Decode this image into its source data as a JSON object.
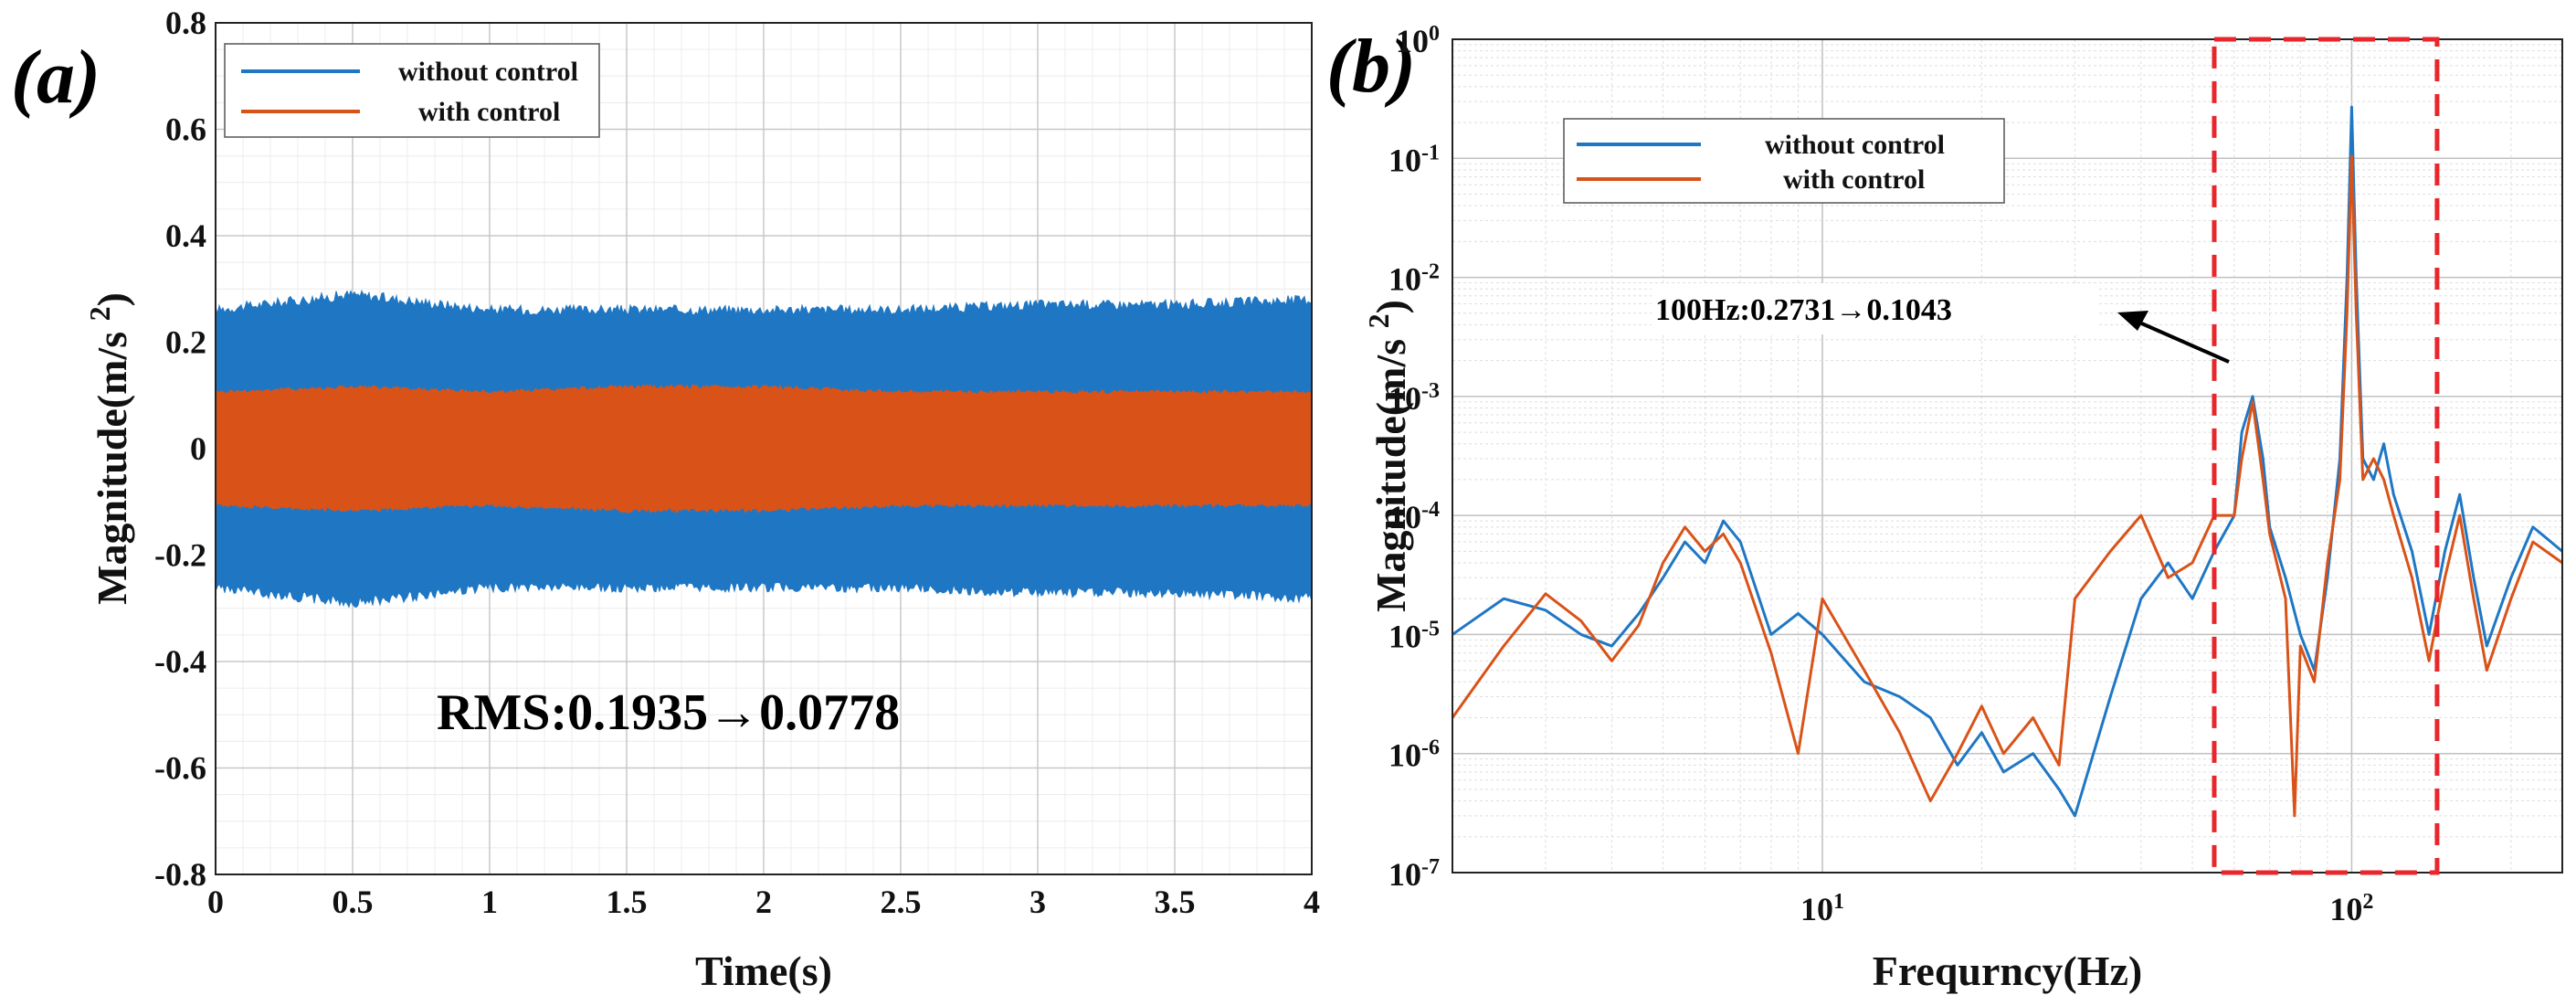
{
  "colors": {
    "without": "#1f77c4",
    "with": "#d95319",
    "highlight": "#e8262b"
  },
  "chart_data": [
    {
      "id": "a",
      "panel_label": "(a)",
      "type": "area",
      "xlabel": "Time(s)",
      "ylabel": "Magnitude(m/s 2)",
      "xlim": [
        0,
        4
      ],
      "ylim": [
        -0.8,
        0.8
      ],
      "xticks": [
        0,
        0.5,
        1,
        1.5,
        2,
        2.5,
        3,
        3.5,
        4
      ],
      "xtick_labels": [
        "0",
        "0.5",
        "1",
        "1.5",
        "2",
        "2.5",
        "3",
        "3.5",
        "4"
      ],
      "yticks": [
        -0.8,
        -0.6,
        -0.4,
        -0.2,
        0,
        0.2,
        0.4,
        0.6,
        0.8
      ],
      "ytick_labels": [
        "-0.8",
        "-0.6",
        "-0.4",
        "-0.2",
        "0",
        "0.2",
        "0.4",
        "0.6",
        "0.8"
      ],
      "series": [
        {
          "name": "without control",
          "color_key": "without",
          "envelope": {
            "t": [
              0,
              0.5,
              1,
              1.5,
              2,
              2.5,
              3,
              3.5,
              4
            ],
            "amplitude": [
              0.27,
              0.3,
              0.27,
              0.27,
              0.27,
              0.27,
              0.28,
              0.28,
              0.29
            ]
          }
        },
        {
          "name": "with control",
          "color_key": "with",
          "envelope": {
            "t": [
              0,
              0.5,
              1,
              1.5,
              2,
              2.5,
              3,
              3.5,
              4
            ],
            "amplitude": [
              0.11,
              0.12,
              0.11,
              0.12,
              0.12,
              0.11,
              0.11,
              0.11,
              0.11
            ]
          }
        }
      ],
      "legend": [
        "without control",
        "with control"
      ],
      "annotation": "RMS:0.1935→0.0778"
    },
    {
      "id": "b",
      "panel_label": "(b)",
      "type": "line",
      "xscale": "log",
      "yscale": "log",
      "xlabel": "Frequrncy(Hz)",
      "ylabel": "Magnitude(m/s 2)",
      "xlim": [
        2,
        250
      ],
      "ylim": [
        1e-07,
        1
      ],
      "xticks": [
        10,
        100
      ],
      "xtick_labels": [
        [
          "10",
          "1"
        ],
        [
          "10",
          "2"
        ]
      ],
      "yticks": [
        1e-07,
        1e-06,
        1e-05,
        0.0001,
        0.001,
        0.01,
        0.1,
        1
      ],
      "ytick_labels": [
        [
          "10",
          "-7"
        ],
        [
          "10",
          "-6"
        ],
        [
          "10",
          "-5"
        ],
        [
          "10",
          "-4"
        ],
        [
          "10",
          "-3"
        ],
        [
          "10",
          "-2"
        ],
        [
          "10",
          "-1"
        ],
        [
          "10",
          "0"
        ]
      ],
      "series": [
        {
          "name": "without control",
          "color_key": "without",
          "x": [
            2,
            2.5,
            3,
            3.5,
            4,
            4.5,
            5,
            5.5,
            6,
            6.5,
            7,
            8,
            9,
            10,
            12,
            14,
            16,
            18,
            20,
            22,
            25,
            28,
            30,
            35,
            40,
            45,
            50,
            55,
            60,
            62,
            65,
            68,
            70,
            75,
            80,
            85,
            90,
            95,
            98,
            100,
            102,
            105,
            110,
            115,
            120,
            130,
            140,
            150,
            160,
            170,
            180,
            200,
            220,
            250
          ],
          "y": [
            1e-05,
            2e-05,
            1.6e-05,
            1e-05,
            8e-06,
            1.5e-05,
            3e-05,
            6e-05,
            4e-05,
            9e-05,
            6e-05,
            1e-05,
            1.5e-05,
            1e-05,
            4e-06,
            3e-06,
            2e-06,
            8e-07,
            1.5e-06,
            7e-07,
            1e-06,
            5e-07,
            3e-07,
            3e-06,
            2e-05,
            4e-05,
            2e-05,
            5e-05,
            0.0001,
            0.0005,
            0.001,
            0.0003,
            8e-05,
            3e-05,
            1e-05,
            5e-06,
            3e-05,
            0.0003,
            0.01,
            0.27,
            0.01,
            0.0003,
            0.0002,
            0.0004,
            0.00015,
            5e-05,
            1e-05,
            5e-05,
            0.00015,
            3e-05,
            8e-06,
            3e-05,
            8e-05,
            5e-05
          ]
        },
        {
          "name": "with control",
          "color_key": "with",
          "x": [
            2,
            2.5,
            3,
            3.5,
            4,
            4.5,
            5,
            5.5,
            6,
            6.5,
            7,
            8,
            9,
            10,
            12,
            14,
            16,
            18,
            20,
            22,
            25,
            28,
            30,
            35,
            40,
            45,
            50,
            55,
            60,
            62,
            65,
            68,
            70,
            75,
            78,
            80,
            85,
            90,
            95,
            98,
            100,
            102,
            105,
            110,
            115,
            120,
            130,
            140,
            150,
            160,
            170,
            180,
            200,
            220,
            250
          ],
          "y": [
            2e-06,
            8e-06,
            2.2e-05,
            1.3e-05,
            6e-06,
            1.2e-05,
            4e-05,
            8e-05,
            5e-05,
            7e-05,
            4e-05,
            7e-06,
            1e-06,
            2e-05,
            5e-06,
            1.5e-06,
            4e-07,
            1e-06,
            2.5e-06,
            1e-06,
            2e-06,
            8e-07,
            2e-05,
            5e-05,
            0.0001,
            3e-05,
            4e-05,
            0.0001,
            0.0001,
            0.0003,
            0.0009,
            0.0002,
            7e-05,
            2e-05,
            3e-07,
            8e-06,
            4e-06,
            4e-05,
            0.0002,
            0.005,
            0.104,
            0.005,
            0.0002,
            0.0003,
            0.0002,
            0.0001,
            3e-05,
            6e-06,
            3e-05,
            0.0001,
            2e-05,
            5e-06,
            2e-05,
            6e-05,
            4e-05
          ]
        }
      ],
      "legend": [
        "without control",
        "with control"
      ],
      "annotation": "100Hz:0.2731→0.1043",
      "highlight_box_x": [
        55,
        145
      ]
    }
  ]
}
